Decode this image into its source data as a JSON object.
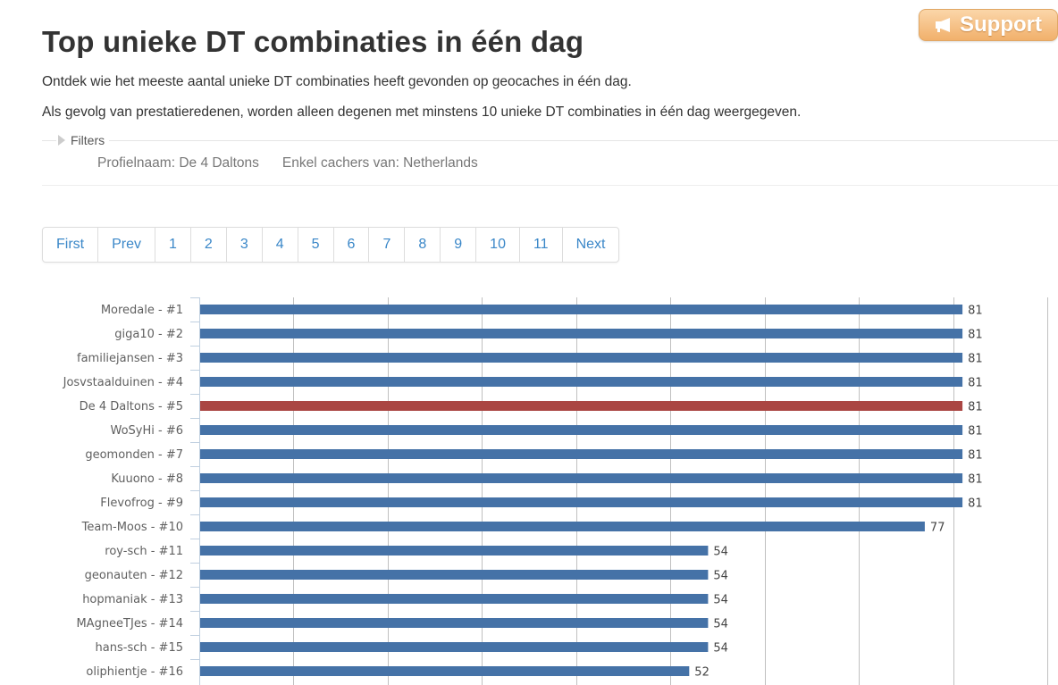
{
  "support": {
    "label": "Support",
    "icon": "megaphone-icon"
  },
  "page": {
    "title": "Top unieke DT combinaties in één dag",
    "intro": "Ontdek wie het meeste aantal unieke DT combinaties heeft gevonden op geocaches in één dag.",
    "note": "Als gevolg van prestatieredenen, worden alleen degenen met minstens 10 unieke DT combinaties in één dag weergegeven."
  },
  "filters": {
    "legend": "Filters",
    "profile": "Profielnaam: De 4 Daltons",
    "country": "Enkel cachers van: Netherlands"
  },
  "pagination": [
    "First",
    "Prev",
    "1",
    "2",
    "3",
    "4",
    "5",
    "6",
    "7",
    "8",
    "9",
    "10",
    "11",
    "Next"
  ],
  "colors": {
    "bar": "#4572a7",
    "highlight": "#aa4643",
    "support_bg": "#f1b06b",
    "link": "#3a87c8"
  },
  "chart_data": {
    "type": "bar",
    "orientation": "horizontal",
    "categories": [
      "Moredale - #1",
      "giga10 - #2",
      "familiejansen - #3",
      "Josvstaalduinen - #4",
      "De 4 Daltons - #5",
      "WoSyHi - #6",
      "geomonden - #7",
      "Kuuono - #8",
      "Flevofrog - #9",
      "Team-Moos - #10",
      "roy-sch - #11",
      "geonauten - #12",
      "hopmaniak - #13",
      "MAgneeTJes - #14",
      "hans-sch - #15",
      "oliphientje - #16"
    ],
    "values": [
      81,
      81,
      81,
      81,
      81,
      81,
      81,
      81,
      81,
      77,
      54,
      54,
      54,
      54,
      54,
      52
    ],
    "highlight_index": 4,
    "xlim": [
      0,
      90
    ],
    "grid": true
  }
}
